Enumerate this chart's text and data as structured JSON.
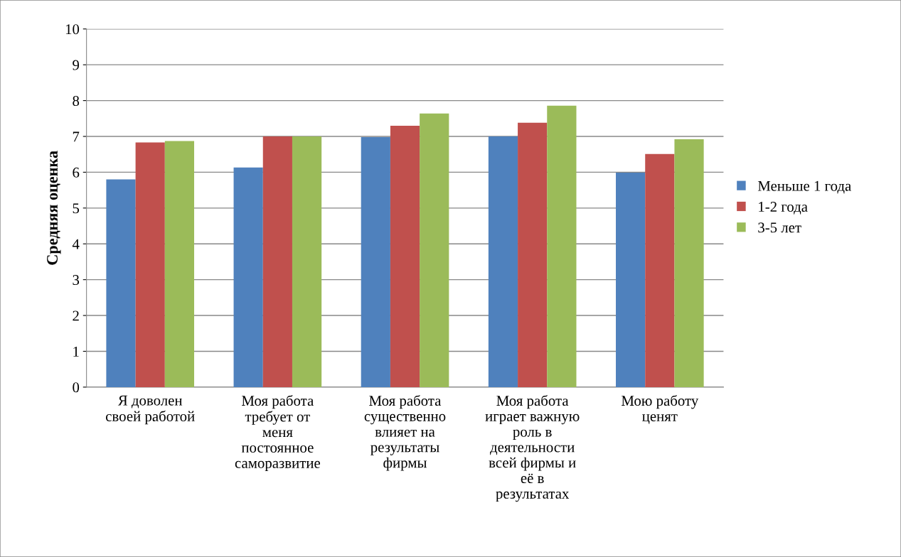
{
  "chart_data": {
    "type": "bar",
    "ylabel": "Средняя оценка",
    "categories": [
      "Я доволен\nсвоей работой",
      "Моя работа\nтребует от\nменя\nпостоянное\nсаморазвитие",
      "Моя работа\nсущественно\nвлияет на\nрезультаты\nфирмы",
      "Моя работа\nиграет важную\nроль в\nдеятельности\nвсей фирмы и\neё в\nрезультатах",
      "Мою работу\nценят"
    ],
    "series": [
      {
        "name": "Меньше 1 года",
        "color": "#4f81bd",
        "values": [
          5.8,
          6.13,
          6.98,
          7.0,
          5.99
        ]
      },
      {
        "name": "1-2 года",
        "color": "#c0504d",
        "values": [
          6.83,
          7.0,
          7.3,
          7.38,
          6.51
        ]
      },
      {
        "name": "3-5 лет",
        "color": "#9bbb59",
        "values": [
          6.87,
          7.0,
          7.64,
          7.86,
          6.92
        ]
      }
    ],
    "ylim": [
      0,
      10
    ],
    "yticks": [
      0,
      1,
      2,
      3,
      4,
      5,
      6,
      7,
      8,
      9,
      10
    ],
    "grid": "y",
    "legend": "right"
  }
}
